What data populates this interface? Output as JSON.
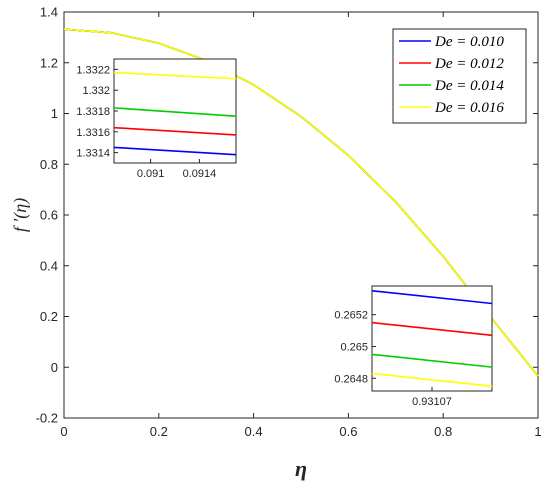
{
  "chart_data": [
    {
      "type": "line",
      "title": "",
      "xlabel": "η",
      "ylabel": "f ′(η)",
      "xlim": [
        0,
        1
      ],
      "ylim": [
        -0.2,
        1.4
      ],
      "grid": false,
      "legend_position": "top-right",
      "x_ticks": [
        "0",
        "0.2",
        "0.4",
        "0.6",
        "0.8",
        "1"
      ],
      "y_ticks": [
        "-0.2",
        "0",
        "0.2",
        "0.4",
        "0.6",
        "0.8",
        "1",
        "1.2",
        "1.4"
      ],
      "x": [
        0,
        0.1,
        0.2,
        0.3,
        0.4,
        0.5,
        0.6,
        0.7,
        0.8,
        0.9,
        1.0
      ],
      "series": [
        {
          "name": "De = 0.010",
          "color": "#0000ff",
          "values": [
            1.332,
            1.318,
            1.277,
            1.209,
            1.113,
            0.988,
            0.835,
            0.651,
            0.437,
            0.198,
            -0.035
          ]
        },
        {
          "name": "De = 0.012",
          "color": "#ff0000",
          "values": [
            1.332,
            1.318,
            1.277,
            1.209,
            1.113,
            0.988,
            0.835,
            0.651,
            0.437,
            0.198,
            -0.035
          ]
        },
        {
          "name": "De = 0.014",
          "color": "#00cc00",
          "values": [
            1.332,
            1.318,
            1.277,
            1.209,
            1.113,
            0.988,
            0.835,
            0.651,
            0.437,
            0.198,
            -0.035
          ]
        },
        {
          "name": "De = 0.016",
          "color": "#ffff00",
          "values": [
            1.332,
            1.318,
            1.277,
            1.209,
            1.113,
            0.988,
            0.835,
            0.651,
            0.437,
            0.198,
            -0.035
          ]
        }
      ]
    },
    {
      "type": "line",
      "title": "",
      "xlim": [
        0.0907,
        0.0917
      ],
      "ylim": [
        1.3313,
        1.3323
      ],
      "x_ticks": [
        "0.091",
        "0.0914"
      ],
      "x_tick_values": [
        0.091,
        0.0914
      ],
      "y_ticks": [
        "1.3314",
        "1.3316",
        "1.3318",
        "1.332",
        "1.3322"
      ],
      "y_tick_values": [
        1.3314,
        1.3316,
        1.3318,
        1.332,
        1.3322
      ],
      "x": [
        0.0907,
        0.0917
      ],
      "series": [
        {
          "color": "#0000ff",
          "values": [
            1.33145,
            1.33138
          ]
        },
        {
          "color": "#ff0000",
          "values": [
            1.33164,
            1.33157
          ]
        },
        {
          "color": "#00cc00",
          "values": [
            1.33183,
            1.33175
          ]
        },
        {
          "color": "#ffff00",
          "values": [
            1.33217,
            1.33211
          ]
        }
      ]
    },
    {
      "type": "line",
      "title": "",
      "xlim": [
        0.931065,
        0.931075
      ],
      "ylim": [
        0.26472,
        0.26538
      ],
      "x_ticks": [
        "0.93107"
      ],
      "x_tick_values": [
        0.93107
      ],
      "y_ticks": [
        "0.2648",
        "0.265",
        "0.2652"
      ],
      "y_tick_values": [
        0.2648,
        0.265,
        0.2652
      ],
      "x": [
        0.931065,
        0.931075
      ],
      "series": [
        {
          "color": "#0000ff",
          "values": [
            0.26535,
            0.26527
          ]
        },
        {
          "color": "#ff0000",
          "values": [
            0.26515,
            0.26507
          ]
        },
        {
          "color": "#00cc00",
          "values": [
            0.26495,
            0.26487
          ]
        },
        {
          "color": "#ffff00",
          "values": [
            0.26483,
            0.26475
          ]
        }
      ]
    }
  ]
}
